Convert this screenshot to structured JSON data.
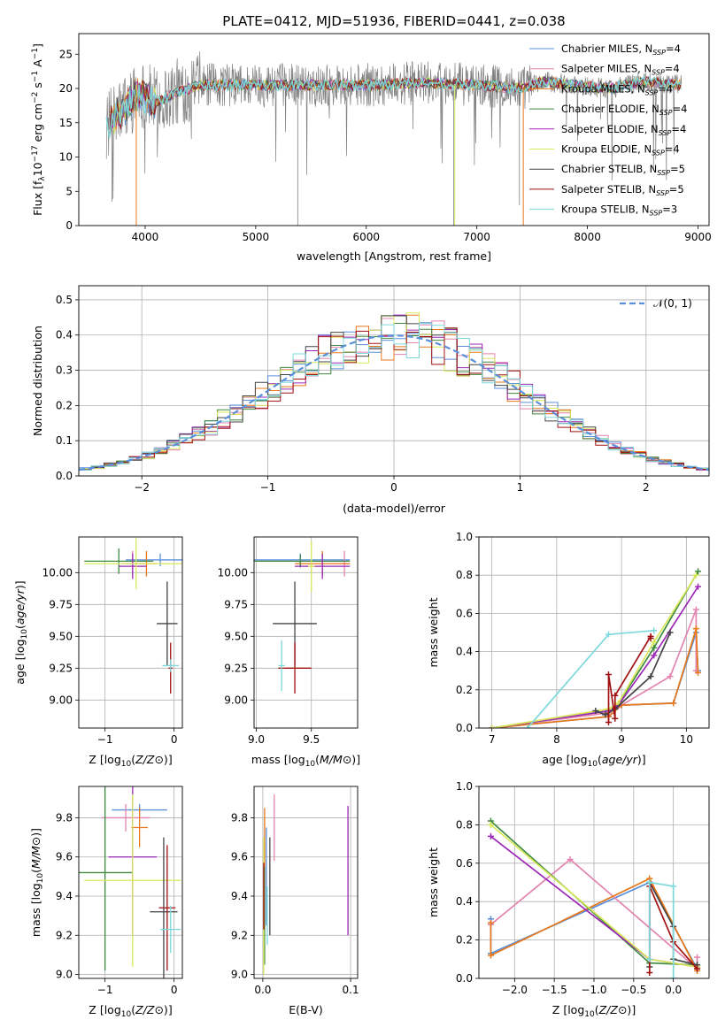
{
  "figure_title": "PLATE=0412, MJD=51936, FIBERID=0441, z=0.038",
  "colors": {
    "Chabrier MILES": "#5a8fdc",
    "Salpeter MILES": "#e383b0",
    "Kroupa MILES": "#e8781a",
    "Chabrier ELODIE": "#3f8a3f",
    "Salpeter ELODIE": "#9b28b6",
    "Kroupa ELODIE": "#d8e85a",
    "Chabrier STELIB": "#444444",
    "Salpeter STELIB": "#a01010",
    "Kroupa STELIB": "#7dd8dc",
    "data": "#808080",
    "normal": "#5a8fdc"
  },
  "chart_data": [
    {
      "id": "spectrum",
      "type": "line",
      "title": "PLATE=0412, MJD=51936, FIBERID=0441, z=0.038",
      "xlabel": "wavelength [Angstrom, rest frame]",
      "ylabel_parts": [
        "Flux [f",
        "λ",
        "10",
        "−17",
        " erg cm",
        "−2",
        " s",
        "−1",
        " A",
        "−1",
        "]"
      ],
      "xlim": [
        3400,
        9100
      ],
      "ylim": [
        0,
        28
      ],
      "xticks": [
        4000,
        5000,
        6000,
        7000,
        8000,
        9000
      ],
      "yticks": [
        0,
        5,
        10,
        15,
        20,
        25
      ],
      "grid": false,
      "legend_loc": "upper right",
      "data_envelope": [
        [
          3650,
          14.5
        ],
        [
          3800,
          17
        ],
        [
          3950,
          19.5
        ],
        [
          4100,
          18
        ],
        [
          4300,
          19.5
        ],
        [
          4500,
          20.5
        ],
        [
          5000,
          20.5
        ],
        [
          5500,
          20.5
        ],
        [
          6000,
          20.5
        ],
        [
          6500,
          20.8
        ],
        [
          7000,
          20.5
        ],
        [
          7400,
          20
        ],
        [
          7600,
          21
        ],
        [
          8000,
          20.3
        ],
        [
          8200,
          20
        ],
        [
          8500,
          21
        ],
        [
          8850,
          20.5
        ]
      ],
      "legend": [
        {
          "label": "Chabrier MILES, N",
          "sub": "SSP",
          "value": "=4"
        },
        {
          "label": "Salpeter MILES, N",
          "sub": "SSP",
          "value": "=4"
        },
        {
          "label": "Kroupa MILES, N",
          "sub": "SSP",
          "value": "=4"
        },
        {
          "label": "Chabrier ELODIE, N",
          "sub": "SSP",
          "value": "=4"
        },
        {
          "label": "Salpeter ELODIE, N",
          "sub": "SSP",
          "value": "=4"
        },
        {
          "label": "Kroupa ELODIE, N",
          "sub": "SSP",
          "value": "=4"
        },
        {
          "label": "Chabrier STELIB, N",
          "sub": "SSP",
          "value": "=5"
        },
        {
          "label": "Salpeter STELIB, N",
          "sub": "SSP",
          "value": "=5"
        },
        {
          "label": "Kroupa STELIB, N",
          "sub": "SSP",
          "value": "=3"
        }
      ]
    },
    {
      "id": "residuals",
      "type": "histogram",
      "xlabel": "(data-model)/error",
      "ylabel": "Normed distribution",
      "xlim": [
        -2.5,
        2.5
      ],
      "ylim": [
        0,
        0.54
      ],
      "xticks": [
        -2,
        -1,
        0,
        1,
        2
      ],
      "yticks": [
        0.0,
        0.1,
        0.2,
        0.3,
        0.4,
        0.5
      ],
      "grid": true,
      "bin_width": 0.1,
      "reference": {
        "label": "𝒩(0, 1)",
        "mean": 0,
        "sigma": 1
      },
      "legend_loc": "upper right"
    },
    {
      "id": "age_vs_Z",
      "type": "errorbar",
      "xlabel": "Z [log10(Z/Z⊙)]",
      "ylabel": "age  [log10(age/yr)]",
      "xlim": [
        -1.38,
        0.12
      ],
      "ylim": [
        8.78,
        10.28
      ],
      "xticks": [
        -1,
        0
      ],
      "yticks": [
        9.0,
        9.25,
        9.5,
        9.75,
        10.0
      ],
      "grid": true,
      "points": [
        {
          "model": "Chabrier MILES",
          "x": -0.2,
          "xerr": 0.5,
          "y": 10.1,
          "yerr": 0.05
        },
        {
          "model": "Salpeter MILES",
          "x": -0.6,
          "xerr": 0.15,
          "y": 10.07,
          "yerr": 0.1
        },
        {
          "model": "Kroupa MILES",
          "x": -0.4,
          "xerr": 0.15,
          "y": 10.07,
          "yerr": 0.1
        },
        {
          "model": "Chabrier ELODIE",
          "x": -0.8,
          "xerr": 0.5,
          "y": 10.09,
          "yerr": 0.1
        },
        {
          "model": "Salpeter ELODIE",
          "x": -0.6,
          "xerr": 0.2,
          "y": 10.05,
          "yerr": 0.1
        },
        {
          "model": "Kroupa ELODIE",
          "x": -0.55,
          "xerr": 0.75,
          "y": 10.07,
          "yerr": 0.2
        },
        {
          "model": "Chabrier STELIB",
          "x": -0.1,
          "xerr": 0.15,
          "y": 9.6,
          "yerr": 0.33
        },
        {
          "model": "Salpeter STELIB",
          "x": -0.05,
          "xerr": 0.03,
          "y": 9.25,
          "yerr": 0.2
        },
        {
          "model": "Kroupa STELIB",
          "x": -0.05,
          "xerr": 0.12,
          "y": 9.27,
          "yerr": 0.05
        }
      ]
    },
    {
      "id": "age_vs_mass",
      "type": "errorbar",
      "xlabel": "mass [log10(M/M⊙)]",
      "ylabel": "",
      "xlim": [
        8.98,
        9.92
      ],
      "ylim": [
        8.78,
        10.28
      ],
      "xticks": [
        9.0,
        9.5
      ],
      "yticks": [
        9.0,
        9.25,
        9.5,
        9.75,
        10.0
      ],
      "grid": true,
      "points": [
        {
          "model": "Chabrier MILES",
          "x": 9.4,
          "xerr": 0.45,
          "y": 10.1,
          "yerr": 0.05
        },
        {
          "model": "Salpeter MILES",
          "x": 9.8,
          "xerr": 0.05,
          "y": 10.07,
          "yerr": 0.1
        },
        {
          "model": "Kroupa MILES",
          "x": 9.6,
          "xerr": 0.25,
          "y": 10.07,
          "yerr": 0.1
        },
        {
          "model": "Chabrier ELODIE",
          "x": 9.4,
          "xerr": 0.45,
          "y": 10.09,
          "yerr": 0.05
        },
        {
          "model": "Salpeter ELODIE",
          "x": 9.6,
          "xerr": 0.25,
          "y": 10.05,
          "yerr": 0.1
        },
        {
          "model": "Kroupa ELODIE",
          "x": 9.5,
          "xerr": 0.03,
          "y": 10.05,
          "yerr": 0.2
        },
        {
          "model": "Chabrier STELIB",
          "x": 9.35,
          "xerr": 0.2,
          "y": 9.6,
          "yerr": 0.33
        },
        {
          "model": "Salpeter STELIB",
          "x": 9.35,
          "xerr": 0.15,
          "y": 9.25,
          "yerr": 0.2
        },
        {
          "model": "Kroupa STELIB",
          "x": 9.23,
          "xerr": 0.03,
          "y": 9.27,
          "yerr": 0.2
        }
      ]
    },
    {
      "id": "cum_weight_vs_age",
      "type": "line",
      "xlabel": "age  [log10(age/yr)]",
      "ylabel": "mass weight",
      "xlim": [
        6.8,
        10.35
      ],
      "ylim": [
        0,
        1.0
      ],
      "xticks": [
        7,
        8,
        9,
        10
      ],
      "yticks": [
        0.0,
        0.2,
        0.4,
        0.6,
        0.8,
        1.0
      ],
      "grid": true,
      "series": [
        {
          "model": "Chabrier MILES",
          "x": [
            7.0,
            8.8,
            9.0,
            9.8,
            10.15,
            10.18
          ],
          "y": [
            0.0,
            0.06,
            0.12,
            0.13,
            0.5,
            0.3
          ]
        },
        {
          "model": "Salpeter MILES",
          "x": [
            7.0,
            8.8,
            9.0,
            9.75,
            10.15,
            10.15
          ],
          "y": [
            0.0,
            0.08,
            0.12,
            0.27,
            0.62,
            0.3
          ]
        },
        {
          "model": "Kroupa MILES",
          "x": [
            7.0,
            8.8,
            9.0,
            9.8,
            10.15,
            10.18
          ],
          "y": [
            0.0,
            0.06,
            0.12,
            0.13,
            0.52,
            0.29
          ]
        },
        {
          "model": "Chabrier ELODIE",
          "x": [
            7.0,
            8.8,
            8.9,
            9.5,
            10.18
          ],
          "y": [
            0.0,
            0.09,
            0.1,
            0.42,
            0.82
          ]
        },
        {
          "model": "Salpeter ELODIE",
          "x": [
            7.0,
            8.8,
            8.95,
            9.5,
            10.18
          ],
          "y": [
            0.0,
            0.09,
            0.12,
            0.38,
            0.74
          ]
        },
        {
          "model": "Kroupa ELODIE",
          "x": [
            7.0,
            8.8,
            8.95,
            9.5,
            10.15
          ],
          "y": [
            0.0,
            0.1,
            0.13,
            0.45,
            0.8
          ]
        },
        {
          "model": "Chabrier STELIB",
          "x": [
            8.6,
            8.75,
            8.9,
            9.45,
            9.75
          ],
          "y": [
            0.09,
            0.07,
            0.1,
            0.27,
            0.5
          ]
        },
        {
          "model": "Salpeter STELIB",
          "x": [
            8.8,
            8.8,
            8.9,
            8.9,
            9.45,
            9.45
          ],
          "y": [
            0.03,
            0.28,
            0.05,
            0.17,
            0.48,
            0.47
          ]
        },
        {
          "model": "Kroupa STELIB",
          "x": [
            7.55,
            8.8,
            9.5
          ],
          "y": [
            0.0,
            0.49,
            0.51
          ]
        }
      ]
    },
    {
      "id": "mass_vs_Z",
      "type": "errorbar",
      "xlabel": "Z [log10(Z/Z⊙)]",
      "ylabel": "mass [log10(M/M⊙)]",
      "xlim": [
        -1.38,
        0.12
      ],
      "ylim": [
        8.98,
        9.96
      ],
      "xticks": [
        -1,
        0
      ],
      "yticks": [
        9.0,
        9.2,
        9.4,
        9.6,
        9.8
      ],
      "grid": true,
      "points": [
        {
          "model": "Chabrier MILES",
          "x": -0.5,
          "xerr": 0.4,
          "y": 9.84,
          "yerr": 0.03
        },
        {
          "model": "Salpeter MILES",
          "x": -0.7,
          "xerr": 0.35,
          "y": 9.8,
          "yerr": 0.07
        },
        {
          "model": "Kroupa MILES",
          "x": -0.5,
          "xerr": 0.12,
          "y": 9.75,
          "yerr": 0.1
        },
        {
          "model": "Chabrier ELODIE",
          "x": -1.0,
          "xerr": 0.4,
          "y": 9.52,
          "yerr": 0.5
        },
        {
          "model": "Salpeter ELODIE",
          "x": -0.6,
          "xerr": 0.35,
          "y": 9.6,
          "yerr": 0.4
        },
        {
          "model": "Kroupa ELODIE",
          "x": -0.6,
          "xerr": 0.7,
          "y": 9.48,
          "yerr": 0.44
        },
        {
          "model": "Chabrier STELIB",
          "x": -0.15,
          "xerr": 0.2,
          "y": 9.32,
          "yerr": 0.38
        },
        {
          "model": "Salpeter STELIB",
          "x": -0.1,
          "xerr": 0.12,
          "y": 9.34,
          "yerr": 0.32
        },
        {
          "model": "Kroupa STELIB",
          "x": -0.05,
          "xerr": 0.15,
          "y": 9.23,
          "yerr": 0.12
        }
      ]
    },
    {
      "id": "mass_vs_ebv",
      "type": "errorbar",
      "xlabel": "E(B-V)",
      "ylabel": "",
      "xlim": [
        -0.01,
        0.108
      ],
      "ylim": [
        8.98,
        9.96
      ],
      "xticks": [
        0.0,
        0.1
      ],
      "yticks": [
        9.0,
        9.2,
        9.4,
        9.6,
        9.8
      ],
      "grid": true,
      "points": [
        {
          "model": "Chabrier MILES",
          "x": 0.004,
          "xerr": 0.0,
          "y": 9.5,
          "yerr": 0.25
        },
        {
          "model": "Salpeter MILES",
          "x": 0.013,
          "xerr": 0.0,
          "y": 9.75,
          "yerr": 0.17
        },
        {
          "model": "Kroupa MILES",
          "x": 0.002,
          "xerr": 0.0,
          "y": 9.7,
          "yerr": 0.15
        },
        {
          "model": "Chabrier ELODIE",
          "x": 0.002,
          "xerr": 0.0,
          "y": 9.3,
          "yerr": 0.25
        },
        {
          "model": "Salpeter ELODIE",
          "x": 0.097,
          "xerr": 0.0,
          "y": 9.53,
          "yerr": 0.33
        },
        {
          "model": "Kroupa ELODIE",
          "x": 0.001,
          "xerr": 0.0,
          "y": 9.35,
          "yerr": 0.35
        },
        {
          "model": "Chabrier STELIB",
          "x": 0.008,
          "xerr": 0.0,
          "y": 9.45,
          "yerr": 0.25
        },
        {
          "model": "Salpeter STELIB",
          "x": 0.001,
          "xerr": 0.0,
          "y": 9.4,
          "yerr": 0.17
        },
        {
          "model": "Kroupa STELIB",
          "x": 0.005,
          "xerr": 0.0,
          "y": 9.3,
          "yerr": 0.15
        }
      ]
    },
    {
      "id": "cum_weight_vs_Z",
      "type": "line",
      "xlabel": "Z [log10(Z/Z⊙)]",
      "ylabel": "mass weight",
      "xlim": [
        -2.45,
        0.45
      ],
      "ylim": [
        0,
        1.0
      ],
      "xticks": [
        -2.0,
        -1.5,
        -1.0,
        -0.5,
        0.0
      ],
      "yticks": [
        0.0,
        0.2,
        0.4,
        0.6,
        0.8,
        1.0
      ],
      "grid": true,
      "series": [
        {
          "model": "Chabrier MILES",
          "x": [
            -2.3,
            -2.3,
            -0.3,
            0.3
          ],
          "y": [
            0.31,
            0.13,
            0.5,
            0.05
          ]
        },
        {
          "model": "Salpeter MILES",
          "x": [
            -2.3,
            -1.3,
            0.3,
            0.3
          ],
          "y": [
            0.28,
            0.62,
            0.05,
            0.11
          ]
        },
        {
          "model": "Kroupa MILES",
          "x": [
            -2.3,
            -2.3,
            -0.3,
            0.3
          ],
          "y": [
            0.29,
            0.12,
            0.52,
            0.04
          ]
        },
        {
          "model": "Chabrier ELODIE",
          "x": [
            -2.3,
            -0.3,
            0.3
          ],
          "y": [
            0.82,
            0.08,
            0.07
          ]
        },
        {
          "model": "Salpeter ELODIE",
          "x": [
            -2.3,
            -0.3,
            0.3
          ],
          "y": [
            0.74,
            0.1,
            0.06
          ]
        },
        {
          "model": "Kroupa ELODIE",
          "x": [
            -2.3,
            -0.3,
            0.3
          ],
          "y": [
            0.8,
            0.1,
            0.06
          ]
        },
        {
          "model": "Chabrier STELIB",
          "x": [
            -0.3,
            -0.3,
            0.0,
            0.0,
            0.3
          ],
          "y": [
            0.06,
            0.5,
            0.27,
            0.1,
            0.07
          ]
        },
        {
          "model": "Salpeter STELIB",
          "x": [
            -0.3,
            -0.3,
            0.0,
            0.3
          ],
          "y": [
            0.03,
            0.48,
            0.19,
            0.05
          ]
        },
        {
          "model": "Kroupa STELIB",
          "x": [
            -0.3,
            -0.3,
            0.0,
            0.0
          ],
          "y": [
            0.1,
            0.5,
            0.48,
            0.0
          ]
        }
      ]
    }
  ]
}
